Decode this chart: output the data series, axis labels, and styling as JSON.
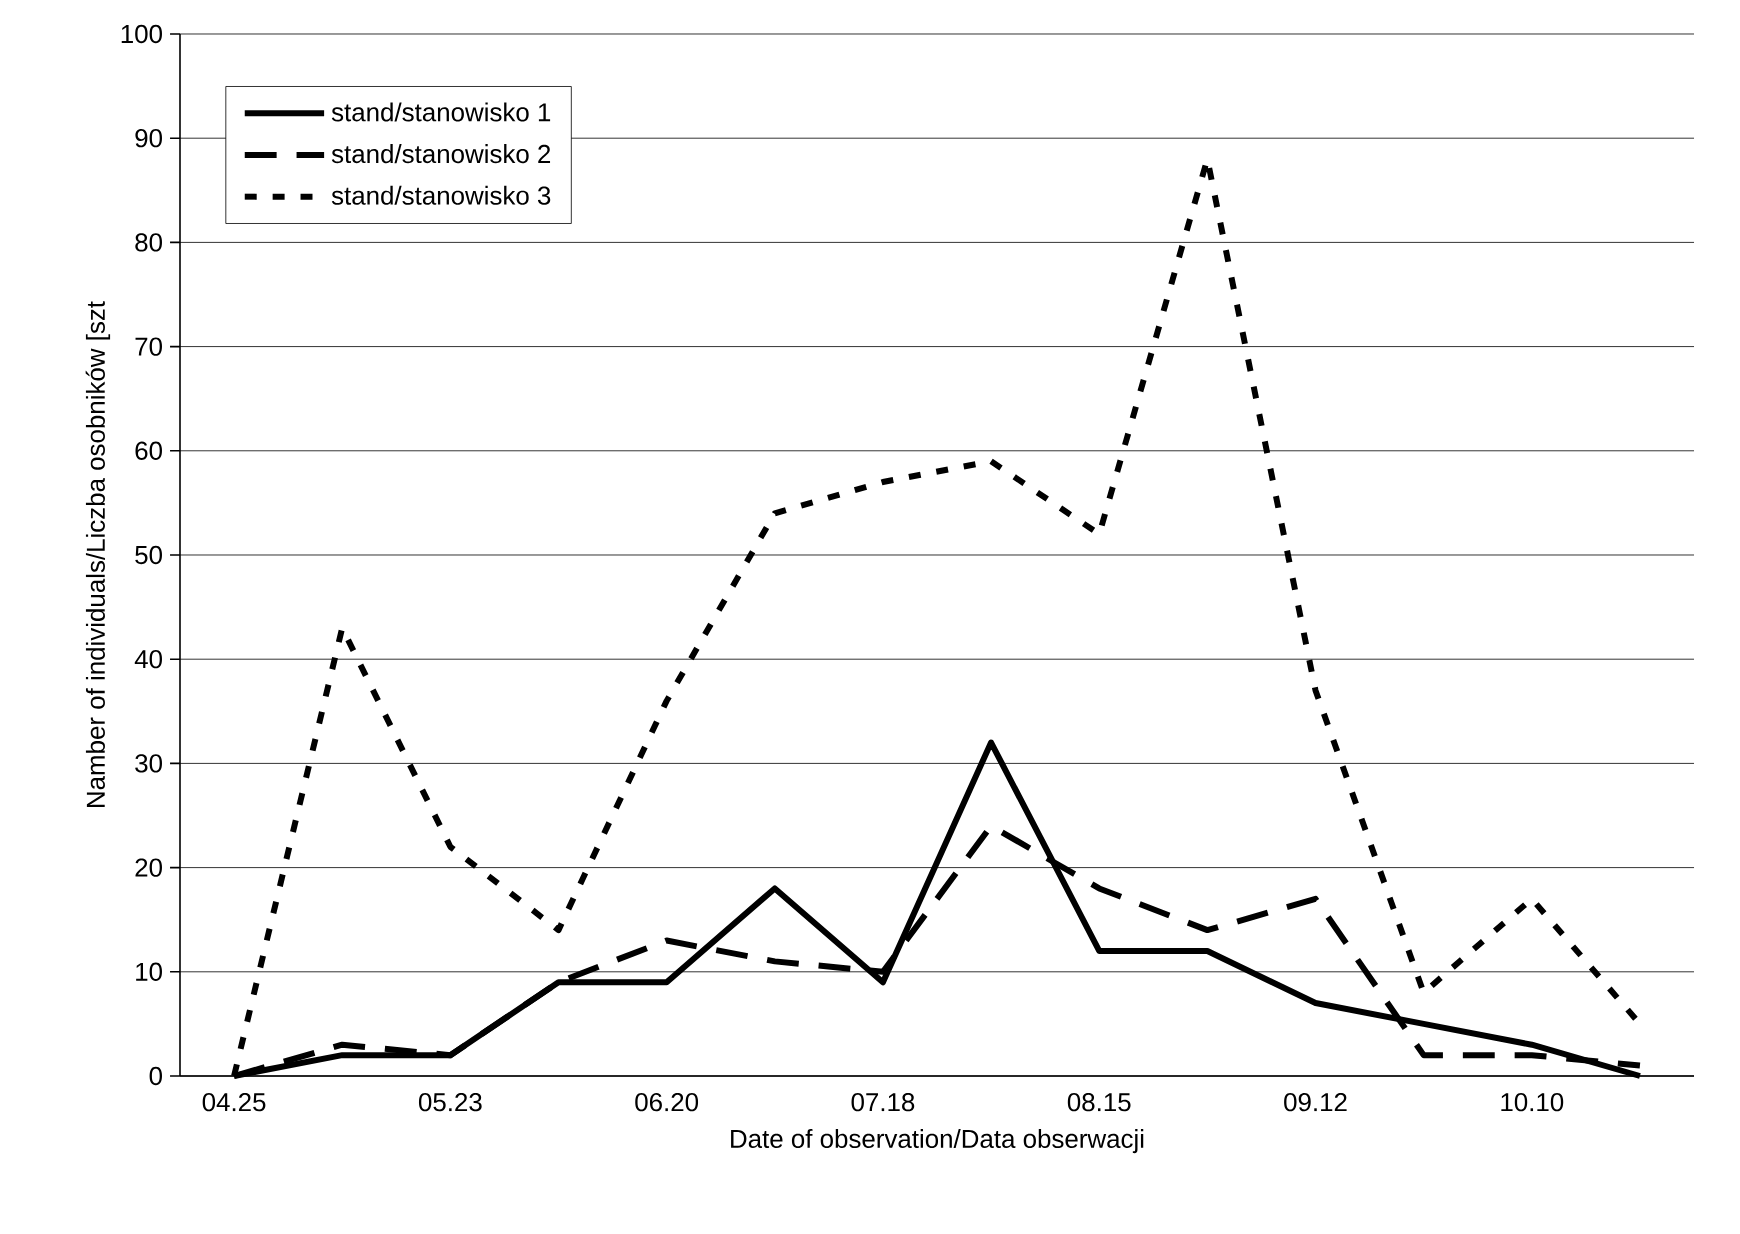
{
  "chart_data": {
    "type": "line",
    "xlabel": "Date of observation/Data obserwacji",
    "ylabel": "Namber of individuals/Liczba osobników [szt",
    "categories": [
      "04.25",
      null,
      "05.23",
      null,
      "06.20",
      null,
      "07.18",
      null,
      "08.15",
      null,
      "09.12",
      null,
      "10.10",
      null
    ],
    "series": [
      {
        "name": "stand/stanowisko 1",
        "color": "#000000",
        "line_style": "solid",
        "values": [
          0,
          2,
          2,
          9,
          9,
          18,
          9,
          32,
          12,
          12,
          7,
          5,
          3,
          0
        ]
      },
      {
        "name": "stand/stanowisko 2",
        "color": "#000000",
        "line_style": "dashed",
        "values": [
          0,
          3,
          2,
          9,
          13,
          11,
          10,
          24,
          18,
          14,
          17,
          2,
          2,
          1
        ]
      },
      {
        "name": "stand/stanowisko 3",
        "color": "#000000",
        "line_style": "dotted",
        "values": [
          0,
          43,
          22,
          14,
          36,
          54,
          57,
          59,
          52,
          88,
          37,
          8,
          17,
          5
        ]
      }
    ],
    "ylim": [
      0,
      100
    ],
    "yticks": [
      0,
      10,
      20,
      30,
      40,
      50,
      60,
      70,
      80,
      90,
      100
    ],
    "grid": "y",
    "legend": "top left",
    "marker": "none"
  }
}
